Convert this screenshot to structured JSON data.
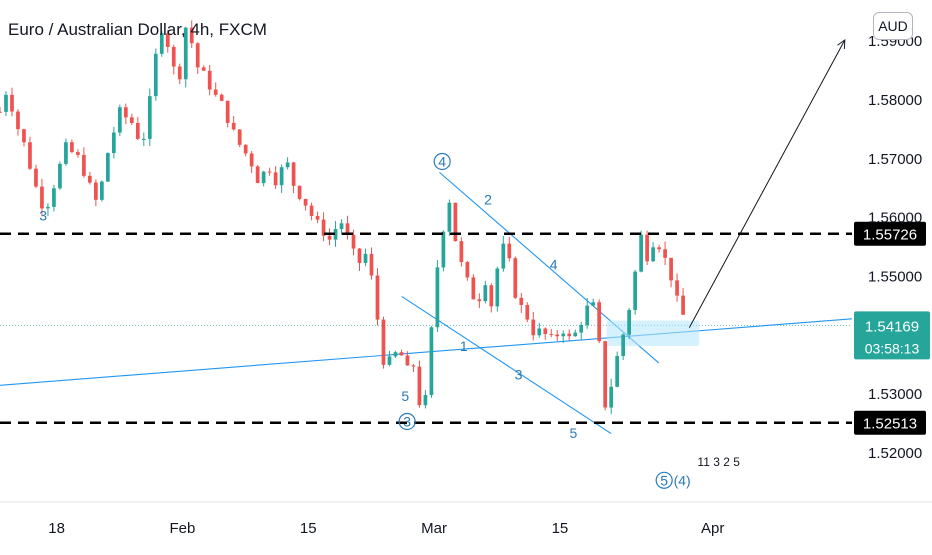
{
  "header": {
    "title": "Euro / Australian Dollar, 4h, FXCM",
    "currency": "AUD"
  },
  "colors": {
    "up": "#26a69a",
    "down": "#ef5350",
    "accent": "#2196f3",
    "wave": "#2a7ab8",
    "level": "#000000",
    "current_price_bg": "#26a69a"
  },
  "chart_data": {
    "type": "candlestick",
    "symbol": "EURAUD",
    "timeframe": "4h",
    "source": "FXCM",
    "ylim": [
      1.512,
      1.597
    ],
    "y_ticks": [
      1.52,
      1.53,
      1.54,
      1.55,
      1.56,
      1.57,
      1.58,
      1.59
    ],
    "y_tick_labels": [
      "1.52000",
      "1.53000",
      "1.54000",
      "1.55000",
      "1.56000",
      "1.57000",
      "1.58000",
      "1.59000"
    ],
    "x_ticks": [
      "18",
      "Feb",
      "15",
      "Mar",
      "15",
      "Apr"
    ],
    "x_tick_days": [
      17,
      31,
      45,
      59,
      73,
      90
    ],
    "x_range_days": [
      10.7,
      105.5
    ],
    "last_price": 1.54169,
    "last_price_label": "1.54169",
    "countdown": "03:58:13",
    "price_path": [
      [
        10.7,
        1.578
      ],
      [
        11.5,
        1.582
      ],
      [
        12.5,
        1.576
      ],
      [
        13.5,
        1.572
      ],
      [
        14.5,
        1.566
      ],
      [
        15.7,
        1.561
      ],
      [
        16.8,
        1.566
      ],
      [
        18.0,
        1.572
      ],
      [
        19.5,
        1.57
      ],
      [
        20.5,
        1.566
      ],
      [
        21.6,
        1.562
      ],
      [
        22.5,
        1.57
      ],
      [
        24.0,
        1.578
      ],
      [
        25.5,
        1.576
      ],
      [
        26.5,
        1.572
      ],
      [
        27.5,
        1.581
      ],
      [
        28.5,
        1.593
      ],
      [
        29.5,
        1.589
      ],
      [
        30.5,
        1.582
      ],
      [
        31.5,
        1.594
      ],
      [
        32.5,
        1.586
      ],
      [
        33.5,
        1.584
      ],
      [
        34.5,
        1.581
      ],
      [
        35.5,
        1.579
      ],
      [
        36.5,
        1.575
      ],
      [
        37.5,
        1.572
      ],
      [
        38.5,
        1.57
      ],
      [
        39.5,
        1.566
      ],
      [
        40.5,
        1.569
      ],
      [
        41.5,
        1.566
      ],
      [
        42.5,
        1.57
      ],
      [
        43.5,
        1.565
      ],
      [
        44.5,
        1.563
      ],
      [
        45.5,
        1.56
      ],
      [
        46.5,
        1.558
      ],
      [
        47.5,
        1.556
      ],
      [
        48.5,
        1.56
      ],
      [
        49.5,
        1.556
      ],
      [
        50.5,
        1.552
      ],
      [
        51.5,
        1.554
      ],
      [
        52.5,
        1.546
      ],
      [
        53.0,
        1.538
      ],
      [
        53.5,
        1.535
      ],
      [
        54.5,
        1.536
      ],
      [
        55.0,
        1.538
      ],
      [
        56.0,
        1.534
      ],
      [
        56.8,
        1.535
      ],
      [
        57.6,
        1.526
      ],
      [
        58.3,
        1.531
      ],
      [
        59.0,
        1.548
      ],
      [
        59.8,
        1.556
      ],
      [
        60.6,
        1.564
      ],
      [
        61.4,
        1.556
      ],
      [
        62.2,
        1.551
      ],
      [
        63.0,
        1.548
      ],
      [
        63.8,
        1.545
      ],
      [
        64.6,
        1.55
      ],
      [
        65.4,
        1.545
      ],
      [
        66.2,
        1.553
      ],
      [
        67.0,
        1.556
      ],
      [
        67.8,
        1.548
      ],
      [
        68.6,
        1.545
      ],
      [
        69.4,
        1.543
      ],
      [
        70.2,
        1.54
      ],
      [
        71.0,
        1.541
      ],
      [
        71.8,
        1.539
      ],
      [
        72.6,
        1.54
      ],
      [
        73.4,
        1.541
      ],
      [
        74.2,
        1.539
      ],
      [
        75.0,
        1.541
      ],
      [
        75.8,
        1.544
      ],
      [
        76.6,
        1.546
      ],
      [
        77.4,
        1.538
      ],
      [
        78.0,
        1.528
      ],
      [
        78.8,
        1.532
      ],
      [
        79.6,
        1.538
      ],
      [
        80.4,
        1.542
      ],
      [
        81.2,
        1.549
      ],
      [
        82.0,
        1.557
      ],
      [
        82.8,
        1.553
      ],
      [
        83.6,
        1.557
      ],
      [
        84.4,
        1.554
      ],
      [
        85.2,
        1.551
      ],
      [
        86.0,
        1.546
      ],
      [
        86.8,
        1.543
      ],
      [
        87.3,
        1.5417
      ]
    ],
    "levels": [
      {
        "price": 1.55726,
        "label": "1.55726"
      },
      {
        "price": 1.52513,
        "label": "1.52513"
      }
    ],
    "waves": [
      {
        "label": "3",
        "day": 15.5,
        "price": 1.5595,
        "circled": false
      },
      {
        "label": "4",
        "day": 59.9,
        "price": 1.5687,
        "circled": true
      },
      {
        "label": "2",
        "day": 65.0,
        "price": 1.5622,
        "circled": false
      },
      {
        "label": "4",
        "day": 72.3,
        "price": 1.5512,
        "circled": false
      },
      {
        "label": "1",
        "day": 62.3,
        "price": 1.5373,
        "circled": false
      },
      {
        "label": "3",
        "day": 68.4,
        "price": 1.5325,
        "circled": false
      },
      {
        "label": "5",
        "day": 55.8,
        "price": 1.5288,
        "circled": false
      },
      {
        "label": "3",
        "day": 56.0,
        "price": 1.5245,
        "circled": true
      },
      {
        "label": "5",
        "day": 74.5,
        "price": 1.5225,
        "circled": false
      },
      {
        "label": "5",
        "day": 84.6,
        "price": 1.5145,
        "circled": true
      },
      {
        "label": "(4)",
        "day": 86.6,
        "price": 1.5145,
        "circled": false
      }
    ],
    "overlay_text": "11 3 2   5"
  }
}
